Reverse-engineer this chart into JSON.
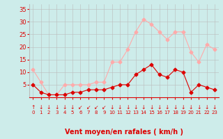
{
  "hours": [
    0,
    1,
    2,
    3,
    4,
    5,
    6,
    7,
    8,
    9,
    10,
    11,
    12,
    13,
    14,
    15,
    16,
    17,
    18,
    19,
    20,
    21,
    22,
    23
  ],
  "wind_avg": [
    5,
    2,
    1,
    1,
    1,
    2,
    2,
    3,
    3,
    3,
    4,
    5,
    5,
    9,
    11,
    13,
    9,
    8,
    11,
    10,
    2,
    5,
    4,
    3
  ],
  "wind_gust": [
    11,
    6,
    1,
    1,
    5,
    5,
    5,
    5,
    6,
    6,
    14,
    14,
    19,
    26,
    31,
    29,
    26,
    23,
    26,
    26,
    18,
    14,
    21,
    19
  ],
  "avg_color": "#dd0000",
  "gust_color": "#ffaaaa",
  "bg_color": "#cdecea",
  "grid_color": "#bbbbbb",
  "xlabel": "Vent moyen/en rafales ( km/h )",
  "xlabel_color": "#dd0000",
  "xlabel_fontsize": 7,
  "tick_color": "#dd0000",
  "ylim": [
    0,
    37
  ],
  "yticks": [
    5,
    10,
    15,
    20,
    25,
    30,
    35
  ],
  "arrow_symbols": [
    "↑",
    "↓",
    "↓",
    "↓",
    "↓",
    "↓",
    "↙",
    "↙",
    "↙",
    "↙",
    "↓",
    "↓",
    "↓",
    "↓",
    "↓",
    "↓",
    "↓",
    "↓",
    "↓",
    "↓",
    "↓",
    "↓",
    "↓",
    "↓"
  ],
  "arrow_color": "#dd0000"
}
